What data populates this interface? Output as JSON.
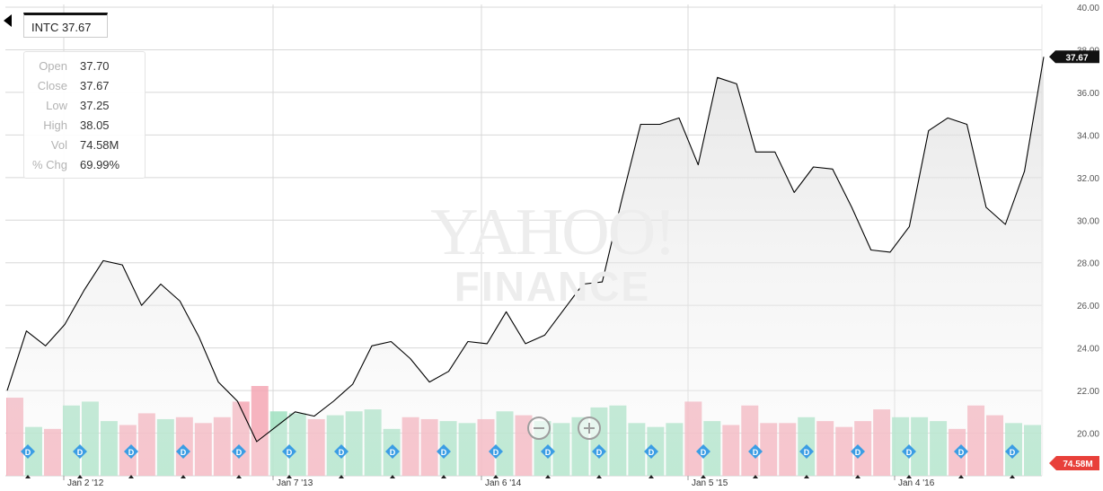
{
  "ticker": {
    "label": "INTC 37.67"
  },
  "ohlc": [
    {
      "key": "Open",
      "value": "37.70"
    },
    {
      "key": "Close",
      "value": "37.67"
    },
    {
      "key": "Low",
      "value": "37.25"
    },
    {
      "key": "High",
      "value": "38.05"
    },
    {
      "key": "Vol",
      "value": "74.58M"
    },
    {
      "key": "% Chg",
      "value": "69.99%"
    }
  ],
  "watermark": {
    "line1": "YAHOO!",
    "line2": "FINANCE"
  },
  "colors": {
    "line": "#000000",
    "up_volume": "#9fe0c0",
    "down_volume": "#f4a7b4",
    "dividend": "#3b9de4",
    "price_tag": "#111111",
    "volume_tag": "#e8403a",
    "grid": "#d8d8d8"
  },
  "chart_data": {
    "type": "line",
    "symbol": "INTC",
    "ylim": [
      18,
      40
    ],
    "yticks": [
      "20.00",
      "22.00",
      "24.00",
      "26.00",
      "28.00",
      "30.00",
      "32.00",
      "34.00",
      "36.00",
      "38.00",
      "40.00"
    ],
    "xticks": [
      "Jan 2 '12",
      "Jan 7 '13",
      "Jan 6 '14",
      "Jan 5 '15",
      "Jan 4 '16"
    ],
    "xrange": [
      "2011-10",
      "2016-04"
    ],
    "x": [
      "2011-10",
      "2011-11",
      "2011-12",
      "2012-01",
      "2012-02",
      "2012-03",
      "2012-04",
      "2012-05",
      "2012-06",
      "2012-07",
      "2012-08",
      "2012-09",
      "2012-10",
      "2012-11",
      "2012-12",
      "2013-01",
      "2013-02",
      "2013-03",
      "2013-04",
      "2013-05",
      "2013-06",
      "2013-07",
      "2013-08",
      "2013-09",
      "2013-10",
      "2013-11",
      "2013-12",
      "2014-01",
      "2014-02",
      "2014-03",
      "2014-04",
      "2014-05",
      "2014-06",
      "2014-07",
      "2014-08",
      "2014-09",
      "2014-10",
      "2014-11",
      "2014-12",
      "2015-01",
      "2015-02",
      "2015-03",
      "2015-04",
      "2015-05",
      "2015-06",
      "2015-07",
      "2015-08",
      "2015-09",
      "2015-10",
      "2015-11",
      "2015-12",
      "2016-01",
      "2016-02",
      "2016-03",
      "2016-04"
    ],
    "close": [
      22.0,
      24.8,
      24.1,
      25.1,
      26.7,
      28.1,
      27.9,
      26.0,
      27.0,
      26.2,
      24.5,
      22.4,
      21.5,
      19.6,
      20.3,
      21.0,
      20.8,
      21.5,
      22.3,
      24.1,
      24.3,
      23.5,
      22.4,
      22.9,
      24.3,
      24.2,
      25.7,
      24.2,
      24.6,
      25.8,
      27.0,
      27.1,
      30.9,
      34.5,
      34.5,
      34.8,
      32.6,
      36.7,
      36.4,
      33.2,
      33.2,
      31.3,
      32.5,
      32.4,
      30.6,
      28.6,
      28.5,
      29.7,
      34.2,
      34.8,
      34.5,
      30.6,
      29.8,
      32.3,
      37.67
    ],
    "volume_millions": [
      40,
      25,
      24,
      36,
      38,
      28,
      26,
      32,
      29,
      30,
      27,
      30,
      38,
      46,
      33,
      32,
      29,
      31,
      33,
      34,
      24,
      30,
      29,
      28,
      27,
      29,
      33,
      31,
      28,
      27,
      30,
      35,
      36,
      27,
      25,
      27,
      38,
      28,
      26,
      36,
      27,
      27,
      30,
      28,
      25,
      28,
      34,
      30,
      30,
      28,
      24,
      36,
      31,
      27,
      26
    ],
    "volume_direction": [
      "down",
      "up",
      "down",
      "up",
      "up",
      "up",
      "down",
      "down",
      "up",
      "down",
      "down",
      "down",
      "down",
      "down",
      "up",
      "up",
      "down",
      "up",
      "up",
      "up",
      "up",
      "down",
      "down",
      "up",
      "up",
      "down",
      "up",
      "down",
      "up",
      "up",
      "up",
      "up",
      "up",
      "up",
      "up",
      "up",
      "down",
      "up",
      "down",
      "down",
      "down",
      "down",
      "up",
      "down",
      "down",
      "down",
      "down",
      "up",
      "up",
      "up",
      "down",
      "down",
      "down",
      "up",
      "up"
    ],
    "current_price_label": "37.67",
    "current_volume_label": "74.58M",
    "dividend_marker": "D",
    "grid": true
  }
}
